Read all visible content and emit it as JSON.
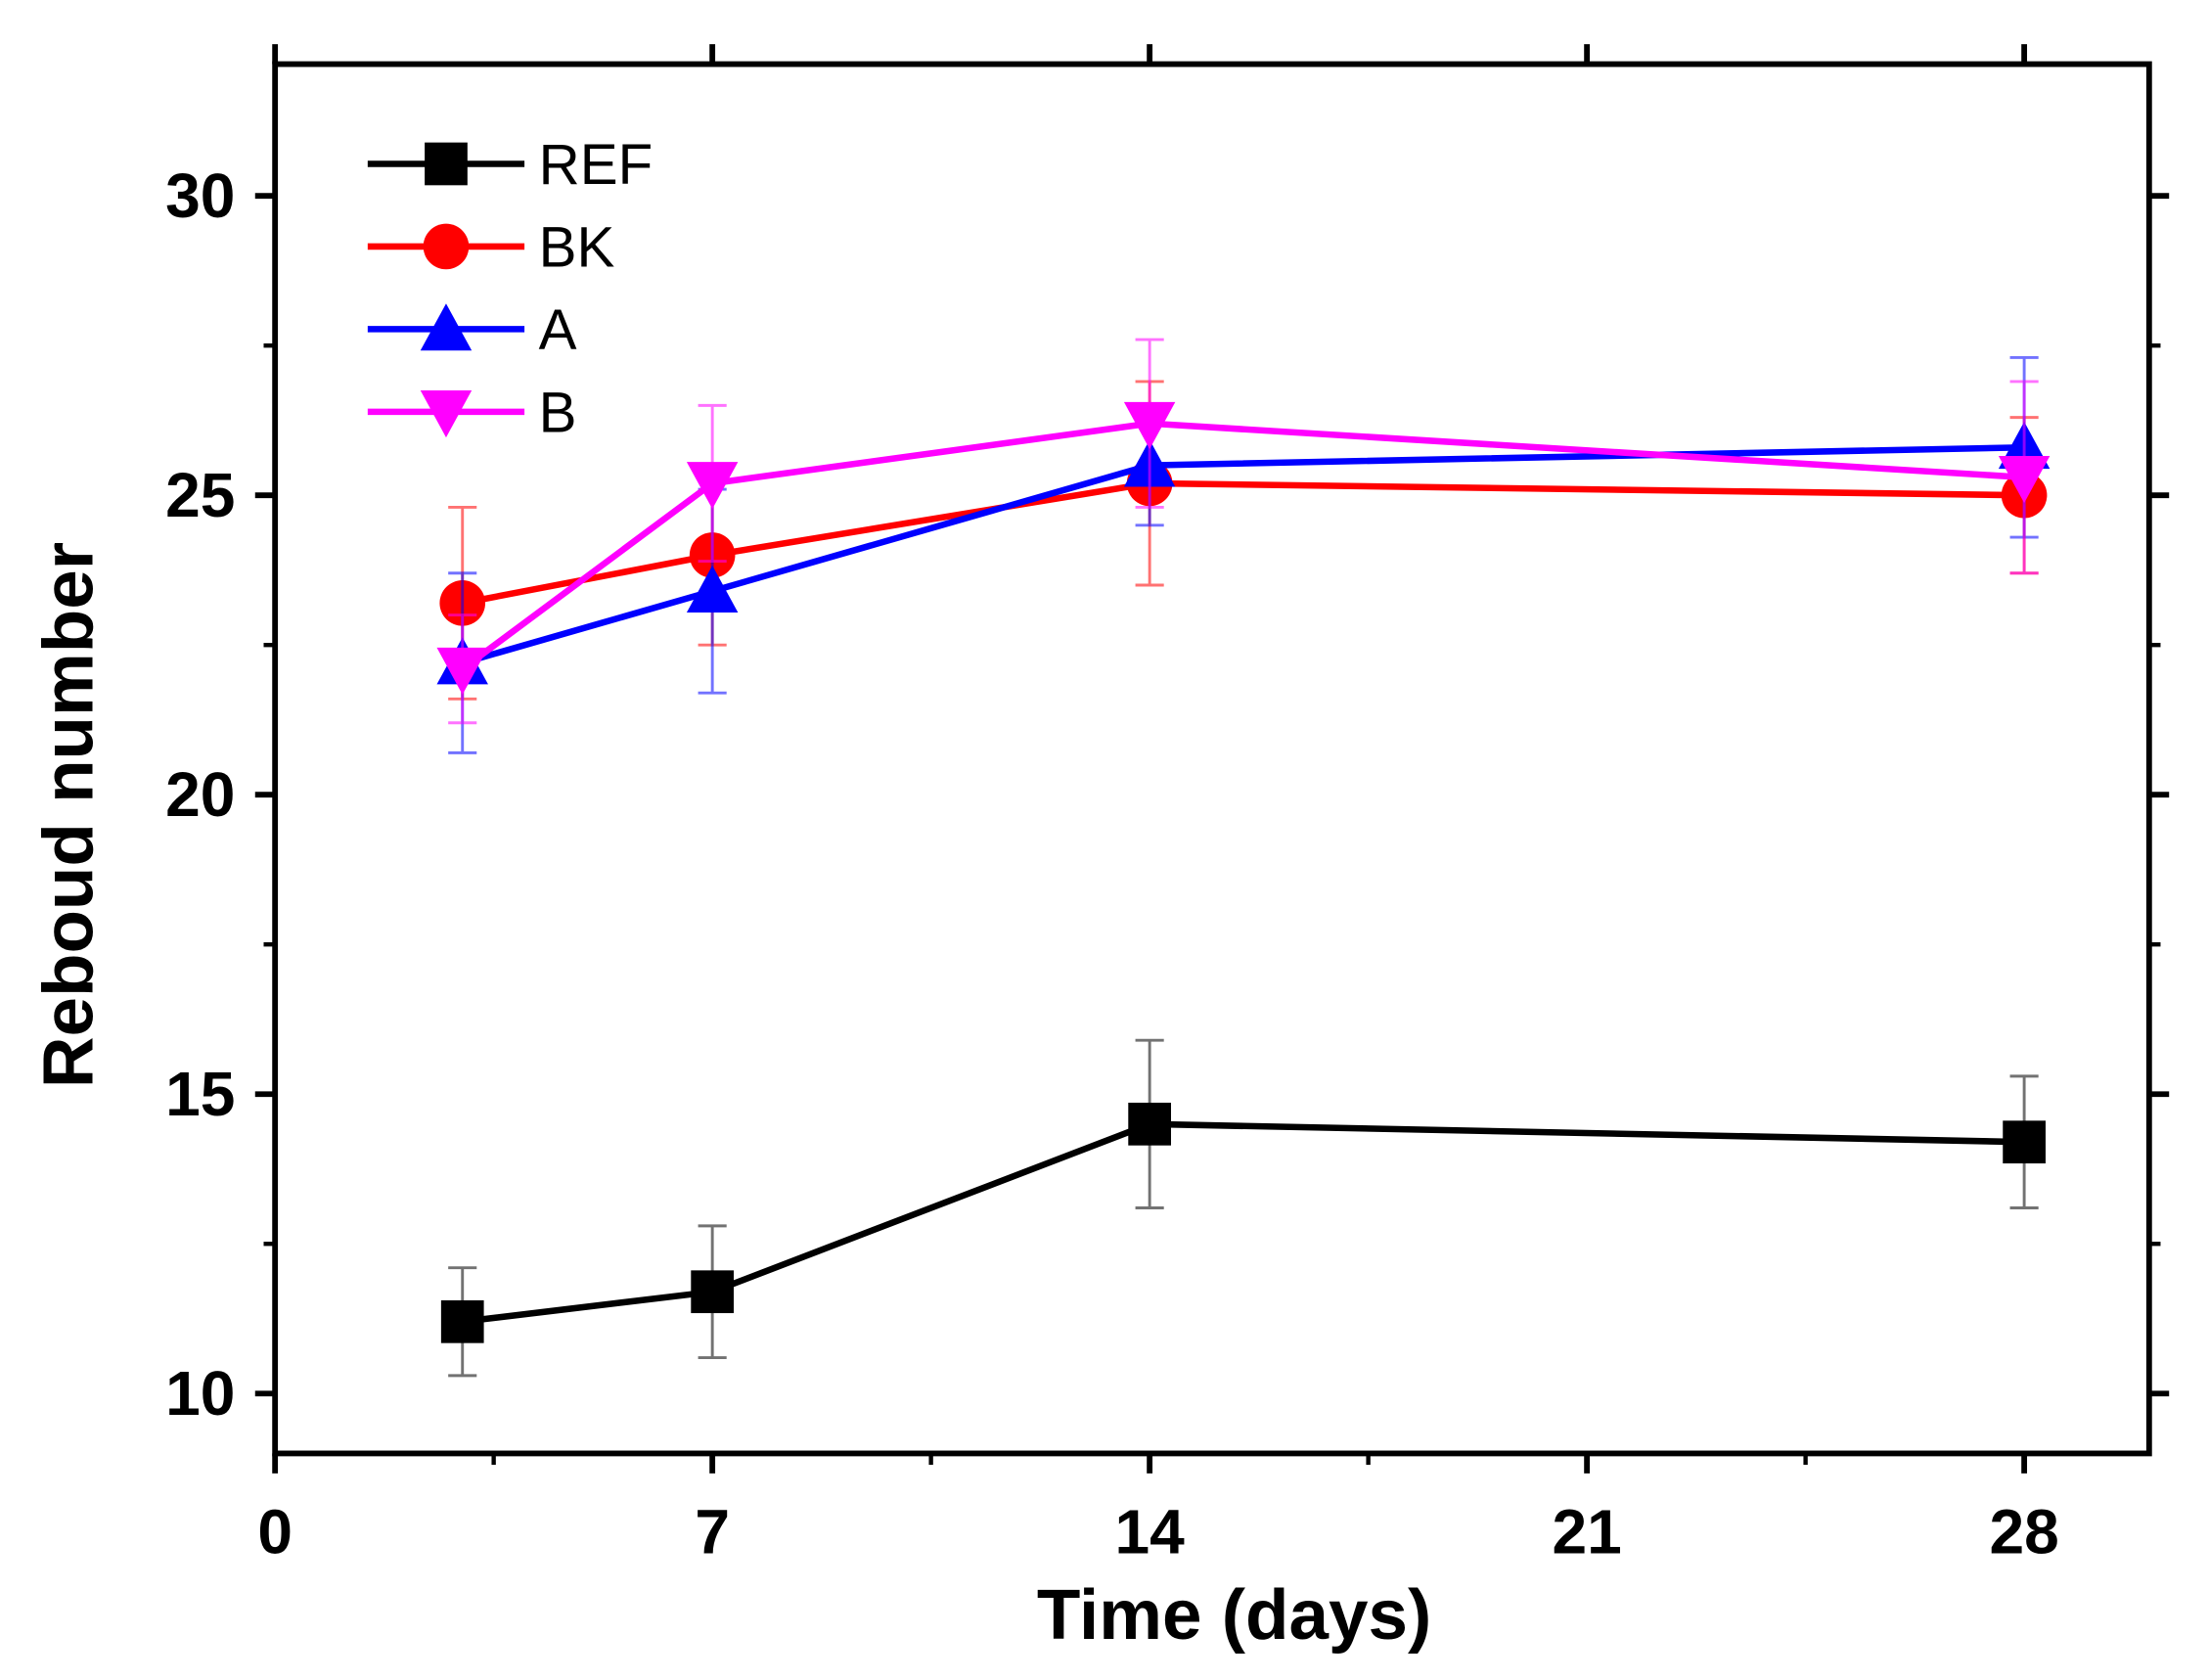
{
  "chart_data": {
    "type": "line",
    "title": "",
    "xlabel": "Time (days)",
    "ylabel": "Reboud number",
    "xlim": [
      0,
      30
    ],
    "ylim": [
      9,
      32.2
    ],
    "xticks": [
      0,
      7,
      14,
      21,
      28
    ],
    "xtick_labels": [
      "0",
      "7",
      "14",
      "21",
      "28"
    ],
    "yticks": [
      10,
      15,
      20,
      25,
      30
    ],
    "ytick_labels": [
      "10",
      "15",
      "20",
      "25",
      "30"
    ],
    "grid": false,
    "legend_position": "top-left",
    "x": [
      3,
      7,
      14,
      28
    ],
    "series": [
      {
        "name": "REF",
        "color": "#000000",
        "marker": "square",
        "values": [
          11.2,
          11.7,
          14.5,
          14.2
        ],
        "errors": [
          0.9,
          1.1,
          1.4,
          1.1
        ]
      },
      {
        "name": "BK",
        "color": "#ff0000",
        "marker": "circle",
        "values": [
          23.2,
          24.0,
          25.2,
          25.0
        ],
        "errors": [
          1.6,
          1.5,
          1.7,
          1.3
        ]
      },
      {
        "name": "A",
        "color": "#0000ff",
        "marker": "triangle-up",
        "values": [
          22.2,
          23.4,
          25.5,
          25.8
        ],
        "errors": [
          1.5,
          1.7,
          1.0,
          1.5
        ]
      },
      {
        "name": "B",
        "color": "#ff00ff",
        "marker": "triangle-down",
        "values": [
          22.1,
          25.2,
          26.2,
          25.3
        ],
        "errors": [
          0.9,
          1.3,
          1.4,
          1.6
        ]
      }
    ]
  }
}
